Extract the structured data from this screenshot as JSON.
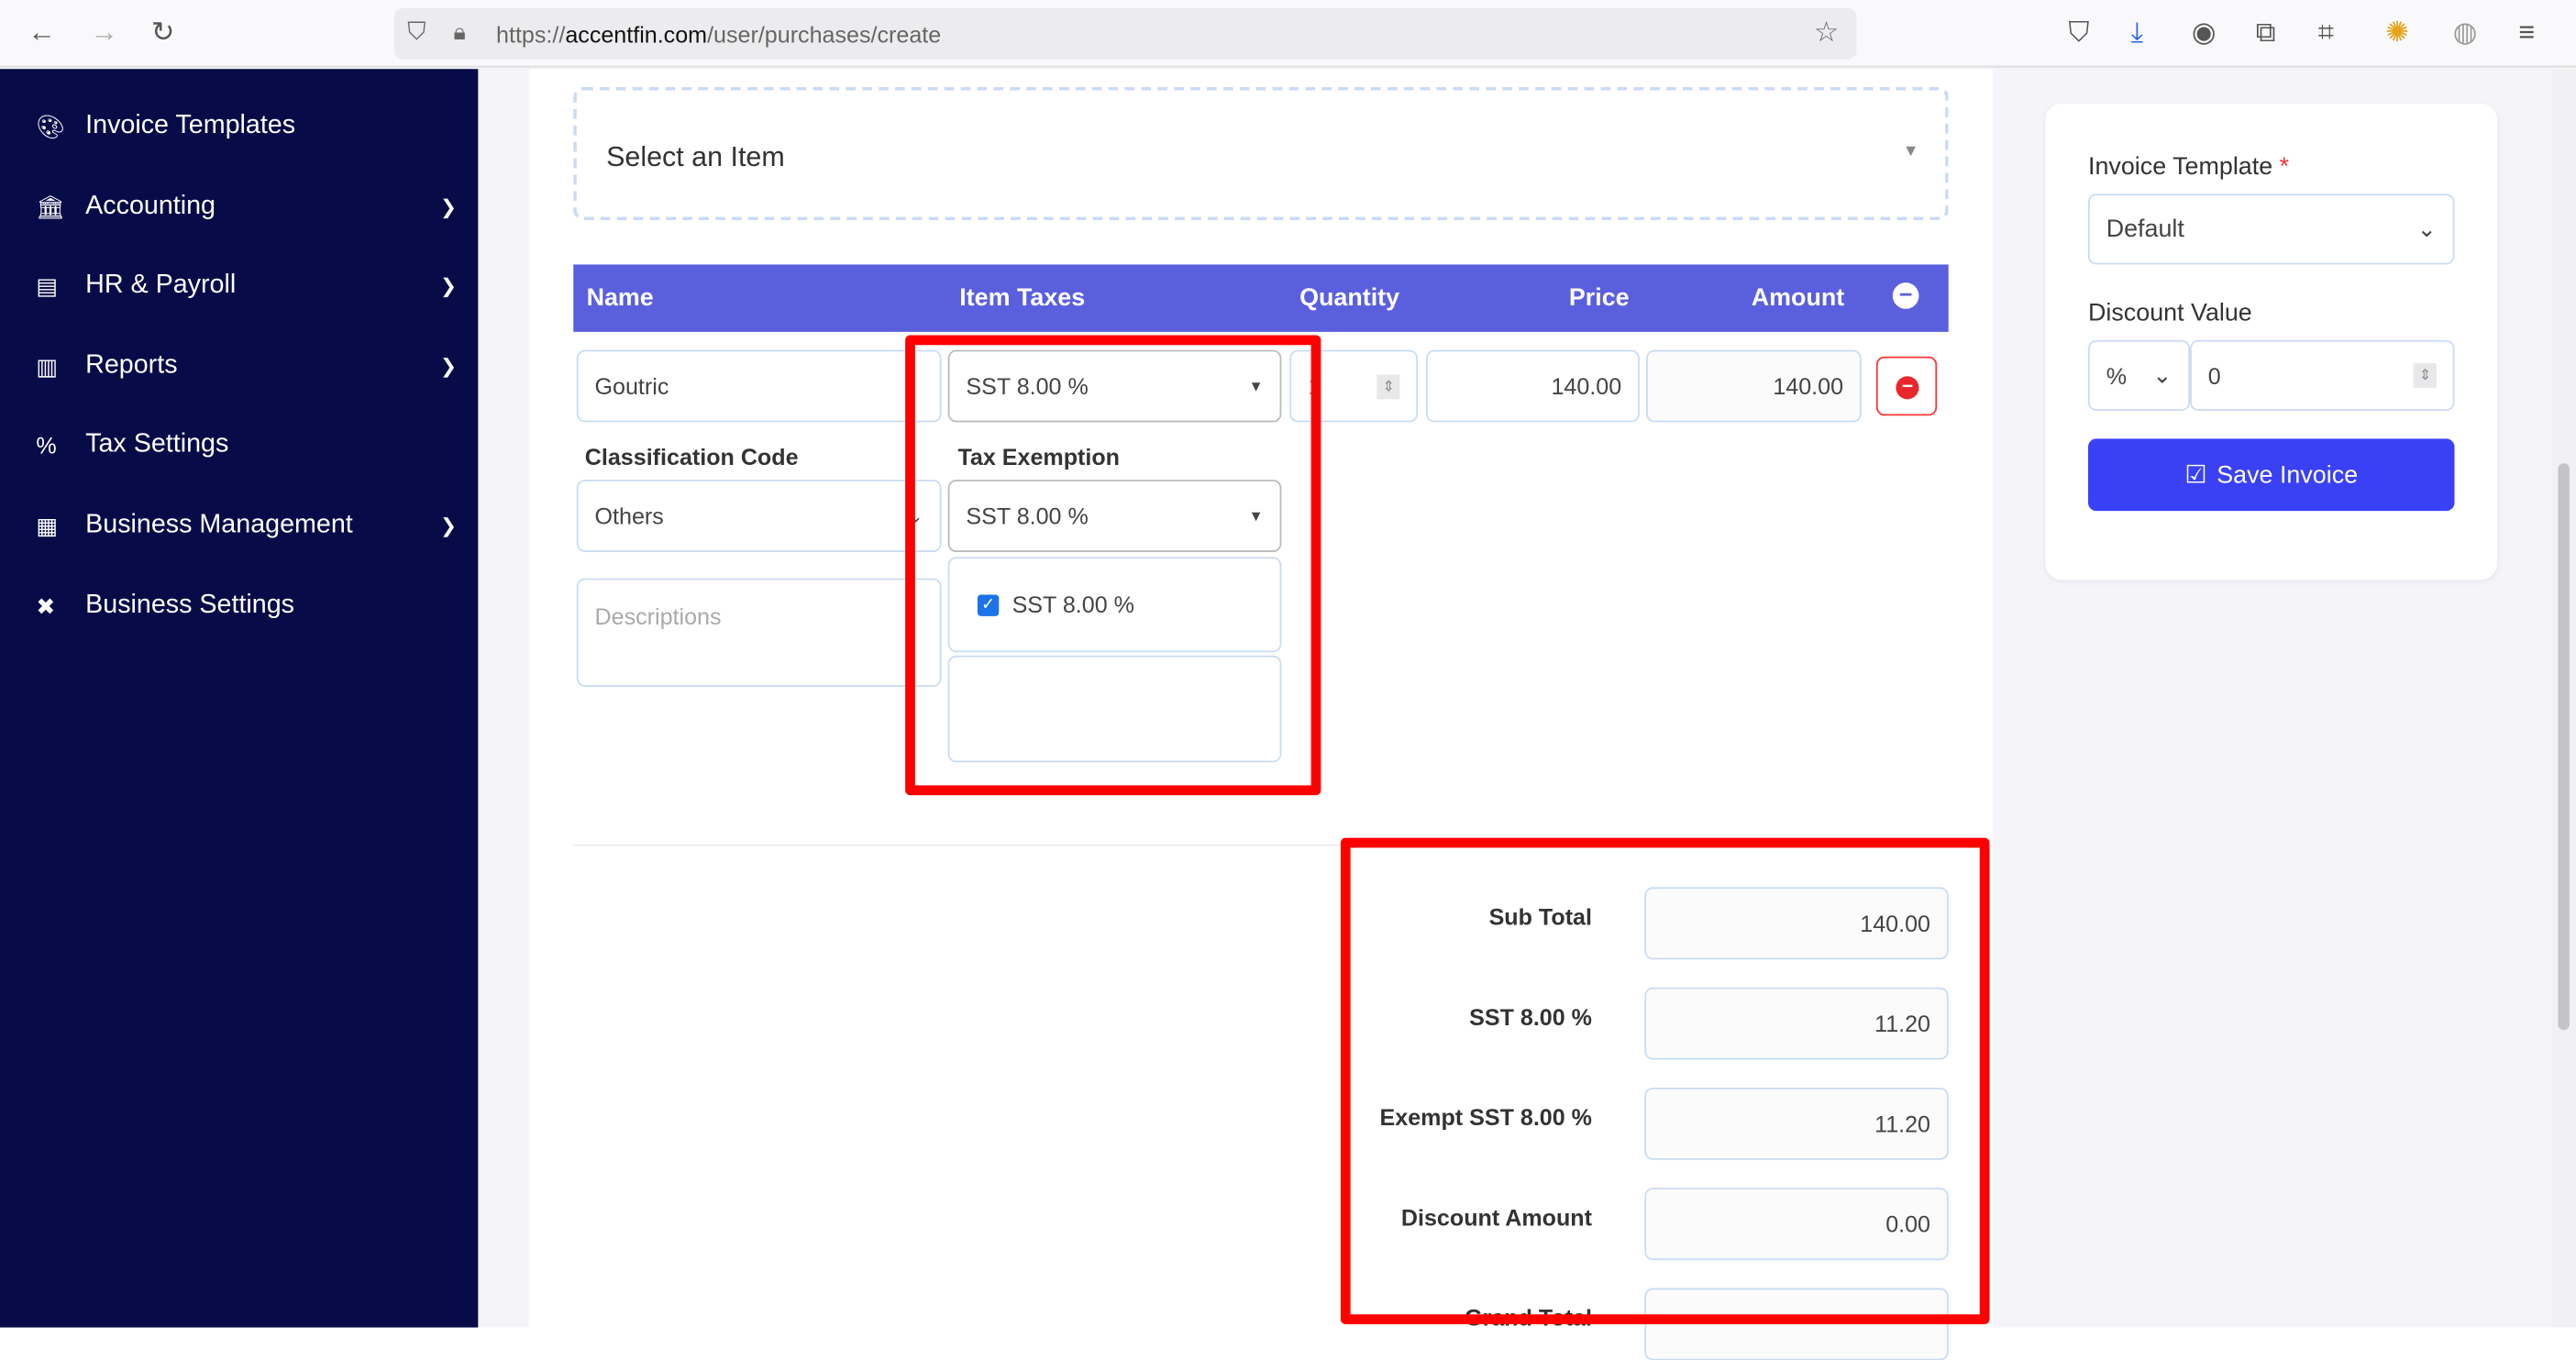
{
  "browser": {
    "url_scheme": "https://",
    "url_domain": "accentfin.com",
    "url_path": "/user/purchases/create"
  },
  "sidebar": {
    "items": [
      {
        "label": "Invoice Templates",
        "icon": "palette-icon",
        "has_submenu": false
      },
      {
        "label": "Accounting",
        "icon": "bank-icon",
        "has_submenu": true
      },
      {
        "label": "HR & Payroll",
        "icon": "money-card-icon",
        "has_submenu": true
      },
      {
        "label": "Reports",
        "icon": "bar-chart-icon",
        "has_submenu": true
      },
      {
        "label": "Tax Settings",
        "icon": "percent-icon",
        "has_submenu": false
      },
      {
        "label": "Business Management",
        "icon": "building-icon",
        "has_submenu": true
      },
      {
        "label": "Business Settings",
        "icon": "tools-icon",
        "has_submenu": false
      }
    ]
  },
  "item_select": {
    "placeholder": "Select an Item"
  },
  "table": {
    "headers": [
      "Name",
      "Item Taxes",
      "Quantity",
      "Price",
      "Amount"
    ],
    "row": {
      "name": "Goutric",
      "item_tax": "SST 8.00 %",
      "quantity": "1",
      "price": "140.00",
      "amount": "140.00"
    }
  },
  "classification": {
    "label": "Classification Code",
    "value": "Others"
  },
  "tax_exemption": {
    "label": "Tax Exemption",
    "value": "SST 8.00 %",
    "checked_option": "SST 8.00 %"
  },
  "description": {
    "placeholder": "Descriptions"
  },
  "totals": [
    {
      "label": "Sub Total",
      "value": "140.00"
    },
    {
      "label": "SST 8.00 %",
      "value": "11.20"
    },
    {
      "label": "Exempt SST 8.00 %",
      "value": "11.20"
    },
    {
      "label": "Discount Amount",
      "value": "0.00"
    },
    {
      "label": "Grand Total",
      "value": ""
    }
  ],
  "settings": {
    "template_label": "Invoice Template",
    "required_mark": "*",
    "template_value": "Default",
    "discount_label": "Discount Value",
    "discount_type": "%",
    "discount_value": "0",
    "save_label": "Save Invoice"
  },
  "colors": {
    "sidebar": "#070b47",
    "table_header": "#5a5fde",
    "save_button": "#3a41f5",
    "highlight": "#ff0000"
  }
}
